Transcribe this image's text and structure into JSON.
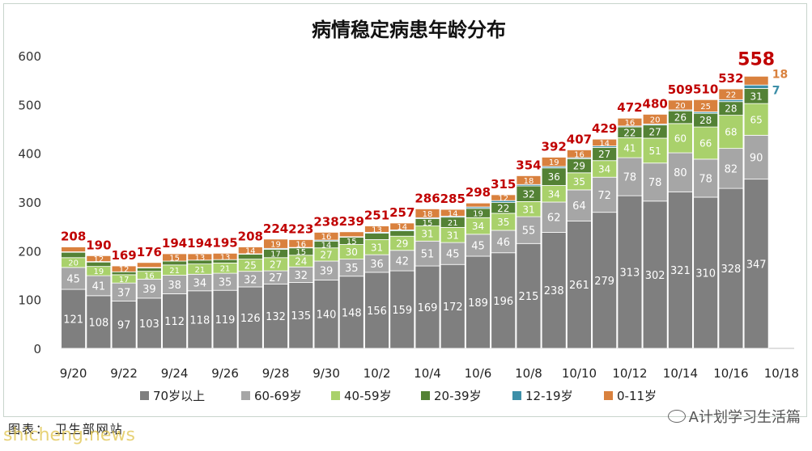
{
  "chart_data": {
    "type": "bar",
    "stacked": true,
    "title": "病情稳定病患年龄分布",
    "categories": [
      "9/20",
      "9/21",
      "9/22",
      "9/23",
      "9/24",
      "9/25",
      "9/26",
      "9/27",
      "9/28",
      "9/29",
      "9/30",
      "10/1",
      "10/2",
      "10/3",
      "10/4",
      "10/5",
      "10/6",
      "10/7",
      "10/8",
      "10/9",
      "10/10",
      "10/11",
      "10/12",
      "10/13",
      "10/14",
      "10/15",
      "10/16",
      "10/17",
      "10/18"
    ],
    "x_tick_labels": [
      "9/20",
      "9/22",
      "9/24",
      "9/26",
      "9/28",
      "9/30",
      "10/2",
      "10/4",
      "10/6",
      "10/8",
      "10/10",
      "10/12",
      "10/14",
      "10/16",
      "10/18"
    ],
    "ylim": [
      0,
      600
    ],
    "yticks": [
      0,
      100,
      200,
      300,
      400,
      500,
      600
    ],
    "series": [
      {
        "name": "70岁以上",
        "color": "#7f7f7f",
        "values": [
          121,
          108,
          97,
          103,
          112,
          118,
          119,
          126,
          132,
          135,
          140,
          148,
          156,
          159,
          169,
          172,
          189,
          196,
          215,
          238,
          261,
          279,
          313,
          302,
          321,
          310,
          328,
          347,
          null
        ]
      },
      {
        "name": "60-69岁",
        "color": "#a6a6a6",
        "values": [
          45,
          41,
          37,
          39,
          38,
          34,
          35,
          32,
          27,
          32,
          39,
          35,
          36,
          42,
          51,
          45,
          45,
          46,
          55,
          62,
          64,
          72,
          78,
          78,
          80,
          78,
          82,
          90,
          null
        ]
      },
      {
        "name": "40-59岁",
        "color": "#a9d16b",
        "values": [
          20,
          19,
          17,
          16,
          21,
          21,
          21,
          25,
          27,
          24,
          27,
          30,
          31,
          29,
          31,
          31,
          34,
          35,
          31,
          34,
          35,
          34,
          41,
          51,
          60,
          66,
          68,
          65,
          null
        ]
      },
      {
        "name": "20-39岁",
        "color": "#548235",
        "values": [
          11,
          9,
          6,
          7,
          8,
          8,
          7,
          10,
          17,
          15,
          14,
          15,
          13,
          11,
          15,
          21,
          19,
          22,
          32,
          36,
          29,
          27,
          22,
          27,
          26,
          28,
          28,
          31,
          null
        ]
      },
      {
        "name": "12-19岁",
        "color": "#3d8fa8",
        "values": [
          1,
          1,
          0,
          1,
          0,
          0,
          0,
          1,
          2,
          1,
          2,
          1,
          2,
          2,
          2,
          2,
          3,
          4,
          3,
          3,
          2,
          3,
          2,
          2,
          2,
          3,
          4,
          7,
          null
        ]
      },
      {
        "name": "0-11岁",
        "color": "#d9813e",
        "values": [
          10,
          12,
          12,
          10,
          15,
          13,
          13,
          14,
          19,
          16,
          16,
          10,
          13,
          14,
          18,
          14,
          8,
          12,
          18,
          19,
          16,
          14,
          16,
          20,
          20,
          25,
          22,
          18,
          null
        ]
      }
    ],
    "totals": [
      208,
      190,
      169,
      176,
      194,
      194,
      195,
      208,
      224,
      223,
      238,
      239,
      251,
      257,
      286,
      285,
      298,
      315,
      354,
      392,
      407,
      429,
      472,
      480,
      509,
      510,
      532,
      558,
      null
    ],
    "last_bar_labels": {
      "total": "558",
      "0-11岁": "18",
      "12-19岁": "7"
    },
    "legend_position": "bottom",
    "grid": false
  },
  "footer": {
    "source_caption": "图表： 卫生部网站",
    "watermark_text": "A计划学习生活篇",
    "site_watermark": "shicheng.news"
  },
  "colors": {
    "total_label": "#c00000",
    "segment_label": "#ffffff"
  }
}
